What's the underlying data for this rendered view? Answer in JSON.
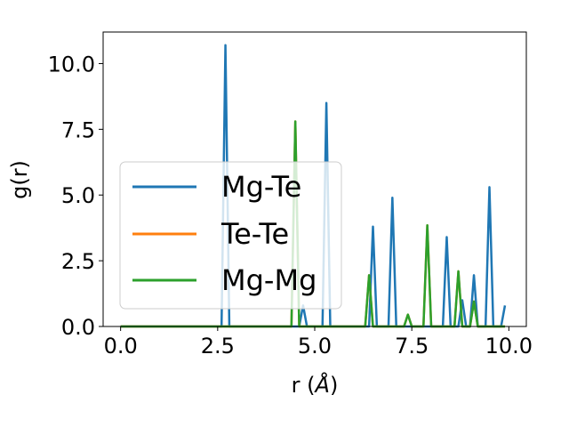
{
  "chart_data": {
    "type": "line",
    "xlabel_main": "r (",
    "xlabel_unit": "Å",
    "xlabel_close": ")",
    "ylabel": "g(r)",
    "xlim": [
      -0.45,
      10.45
    ],
    "ylim": [
      0,
      11.2
    ],
    "xticks": [
      0.0,
      2.5,
      5.0,
      7.5,
      10.0
    ],
    "xtick_labels": [
      "0.0",
      "2.5",
      "5.0",
      "7.5",
      "10.0"
    ],
    "yticks": [
      0.0,
      2.5,
      5.0,
      7.5,
      10.0
    ],
    "ytick_labels": [
      "0.0",
      "2.5",
      "5.0",
      "7.5",
      "10.0"
    ],
    "grid": false,
    "legend_position": "center-left",
    "series": [
      {
        "name": "Mg-Te",
        "color": "#1f77b4",
        "x": [
          0.0,
          2.6,
          2.7,
          2.8,
          4.6,
          4.7,
          4.8,
          5.2,
          5.3,
          5.4,
          6.4,
          6.5,
          6.6,
          6.9,
          7.0,
          7.1,
          8.3,
          8.4,
          8.5,
          8.7,
          8.8,
          8.9,
          9.0,
          9.1,
          9.2,
          9.4,
          9.5,
          9.6,
          9.8,
          9.9
        ],
        "y": [
          0.0,
          0.0,
          10.7,
          0.0,
          0.0,
          0.8,
          0.0,
          0.0,
          8.5,
          0.0,
          0.0,
          3.8,
          0.0,
          0.0,
          4.9,
          0.0,
          0.0,
          3.4,
          0.0,
          0.0,
          1.0,
          0.0,
          0.0,
          1.95,
          0.0,
          0.0,
          5.3,
          0.0,
          0.0,
          0.8
        ]
      },
      {
        "name": "Te-Te",
        "color": "#ff7f0e",
        "x": [
          0.0,
          4.4,
          4.5,
          4.6,
          6.3,
          6.4,
          6.5,
          7.3,
          7.4,
          7.5,
          7.8,
          7.9,
          8.0,
          8.6,
          8.7,
          8.8,
          9.0,
          9.1,
          9.2,
          9.9
        ],
        "y": [
          0.0,
          0.0,
          7.8,
          0.0,
          0.0,
          1.95,
          0.0,
          0.0,
          0.45,
          0.0,
          0.0,
          3.85,
          0.0,
          0.0,
          2.1,
          0.0,
          0.0,
          0.95,
          0.0,
          0.0
        ]
      },
      {
        "name": "Mg-Mg",
        "color": "#2ca02c",
        "x": [
          0.0,
          4.4,
          4.5,
          4.6,
          6.3,
          6.4,
          6.5,
          7.3,
          7.4,
          7.5,
          7.8,
          7.9,
          8.0,
          8.6,
          8.7,
          8.8,
          9.0,
          9.1,
          9.2,
          9.9
        ],
        "y": [
          0.0,
          0.0,
          7.8,
          0.0,
          0.0,
          1.95,
          0.0,
          0.0,
          0.45,
          0.0,
          0.0,
          3.85,
          0.0,
          0.0,
          2.1,
          0.0,
          0.0,
          0.95,
          0.0,
          0.0
        ]
      }
    ]
  }
}
